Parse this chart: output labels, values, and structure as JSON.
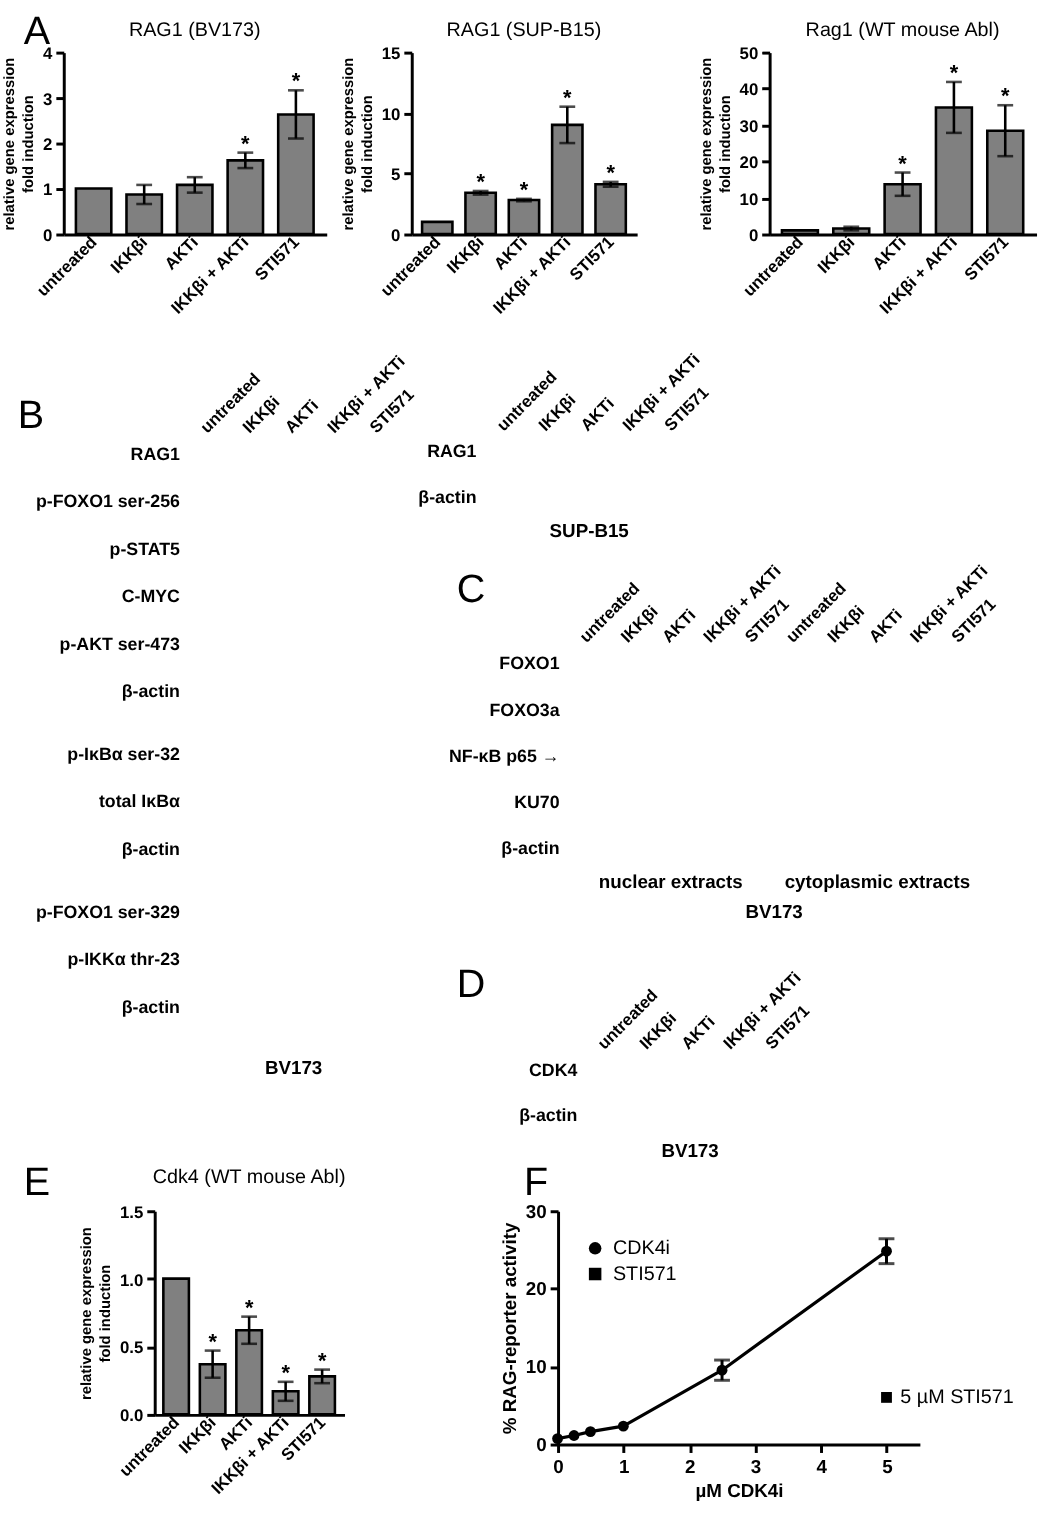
{
  "chart_data": [
    {
      "type": "bar",
      "title": "RAG1 (BV173)",
      "ylabel": "relative gene expression\nfold induction",
      "categories": [
        "untreated",
        "IKKβi",
        "AKTi",
        "IKKβi + AKTi",
        "STI571"
      ],
      "values": [
        1.0,
        0.87,
        1.08,
        1.62,
        2.63
      ],
      "errors": [
        null,
        0.21,
        0.17,
        0.17,
        0.53
      ],
      "color": "#808080",
      "ylim": [
        0,
        4
      ],
      "yticks": [
        0,
        1,
        2,
        3,
        4
      ],
      "annotations": [
        "A",
        {
          "text": "*",
          "x": "IKKβi + AKTi",
          "y": 1.79
        },
        {
          "text": "*",
          "x": "STI571",
          "y": 3.16
        }
      ]
    },
    {
      "type": "bar",
      "title": "RAG1 (SUP-B15)",
      "ylabel": "relative gene expression\nfold induction",
      "categories": [
        "untreated",
        "IKKβi",
        "AKTi",
        "IKKβi + AKTi",
        "STI571"
      ],
      "values": [
        1.0,
        3.4,
        2.8,
        9.0,
        4.1
      ],
      "errors": [
        null,
        0.15,
        0.1,
        1.5,
        0.2
      ],
      "color": "#808080",
      "ylim": [
        0,
        15
      ],
      "yticks": [
        0,
        5,
        10,
        15
      ],
      "annotations": [
        {
          "text": "*",
          "x": "IKKβi",
          "y": 3.55
        },
        {
          "text": "*",
          "x": "AKTi",
          "y": 2.9
        },
        {
          "text": "*",
          "x": "IKKβi + AKTi",
          "y": 10.5
        },
        {
          "text": "*",
          "x": "STI571",
          "y": 4.3
        }
      ]
    },
    {
      "type": "bar",
      "title": "Rag1 (WT mouse Abl)",
      "ylabel": "relative gene expression\nfold induction",
      "categories": [
        "untreated",
        "IKKβi",
        "AKTi",
        "IKKβi + AKTi",
        "STI571"
      ],
      "values": [
        1.0,
        1.5,
        13.7,
        34.8,
        28.4
      ],
      "errors": [
        null,
        0.5,
        3.2,
        7,
        7
      ],
      "color": "#808080",
      "ylim": [
        0,
        50
      ],
      "yticks": [
        0,
        10,
        20,
        30,
        40,
        50
      ],
      "annotations": [
        {
          "text": "*",
          "x": "AKTi",
          "y": 16.9
        },
        {
          "text": "*",
          "x": "IKKβi + AKTi",
          "y": 41.8
        },
        {
          "text": "*",
          "x": "STI571",
          "y": 35.4
        }
      ]
    },
    {
      "type": "other",
      "annotations": [
        "B"
      ],
      "categories": [
        "untreated",
        "IKKβi",
        "AKTi",
        "IKKβi + AKTi",
        "STI571"
      ],
      "y_categories": [
        "RAG1",
        "p-FOXO1 ser-256",
        "p-STAT5",
        "C-MYC",
        "p-AKT ser-473",
        "β-actin"
      ]
    },
    {
      "type": "other",
      "y_categories": [
        "p-IκBα ser-32",
        "total IκBα",
        "β-actin"
      ]
    },
    {
      "type": "other",
      "y_categories": [
        "p-FOXO1 ser-329",
        "p-IKKα thr-23",
        "β-actin"
      ],
      "xlabel": "BV173"
    },
    {
      "type": "other",
      "categories": [
        "untreated",
        "IKKβi",
        "AKTi",
        "IKKβi + AKTi",
        "STI571"
      ],
      "y_categories": [
        "RAG1",
        "β-actin"
      ],
      "xlabel": "SUP-B15"
    },
    {
      "type": "other",
      "annotations": [
        "C",
        "nuclear extracts",
        "cytoplasmic extracts"
      ],
      "categories": [
        "untreated",
        "IKKβi",
        "AKTi",
        "IKKβi + AKTi",
        "STI571",
        "untreated",
        "IKKβi",
        "AKTi",
        "IKKβi + AKTi",
        "STI571"
      ],
      "y_categories": [
        "FOXO1",
        "FOXO3a",
        "NF-κB p65 →",
        "KU70",
        "β-actin"
      ],
      "xlabel": "BV173"
    },
    {
      "type": "other",
      "annotations": [
        "D"
      ],
      "categories": [
        "untreated",
        "IKKβi",
        "AKTi",
        "IKKβi + AKTi",
        "STI571"
      ],
      "y_categories": [
        "CDK4",
        "β-actin"
      ],
      "xlabel": "BV173"
    },
    {
      "type": "bar",
      "title": "Cdk4 (WT mouse Abl)",
      "ylabel": "relative gene expression\nfold induction",
      "categories": [
        "untreated",
        "IKKβi",
        "AKTi",
        "IKKβi + AKTi",
        "STI571"
      ],
      "values": [
        1.0,
        0.37,
        0.62,
        0.17,
        0.28
      ],
      "errors": [
        null,
        0.1,
        0.1,
        0.07,
        0.05
      ],
      "color": "#808080",
      "ylim": [
        0,
        1.5
      ],
      "yticks": [
        {
          "value": 0,
          "label": "0.0"
        },
        {
          "value": 0.5,
          "label": "0.5"
        },
        {
          "value": 1,
          "label": "1.0"
        },
        {
          "value": 1.5,
          "label": "1.5"
        }
      ],
      "annotations": [
        "E",
        {
          "text": "*",
          "x": "IKKβi",
          "y": 0.47
        },
        {
          "text": "*",
          "x": "AKTi",
          "y": 0.72
        },
        {
          "text": "*",
          "x": "IKKβi + AKTi",
          "y": 0.24
        },
        {
          "text": "*",
          "x": "STI571",
          "y": 0.33
        }
      ]
    },
    {
      "type": "line",
      "ylabel": "% RAG-reporter activity",
      "xlabel": "µM CDK4i",
      "series": [
        {
          "name": "CDK4i",
          "color": "#000000",
          "x": [
            0,
            0.25,
            0.5,
            1,
            2.5,
            5
          ],
          "values": [
            0.7,
            1.1,
            1.6,
            2.3,
            9.5,
            24.8
          ],
          "errors": [
            null,
            null,
            null,
            null,
            1.3,
            1.6
          ],
          "marker": "circle"
        },
        {
          "name": "STI571",
          "color": "#000000",
          "x": [
            5
          ],
          "values": [
            6
          ],
          "marker": "square"
        }
      ],
      "xlim": [
        0,
        5.5
      ],
      "xticks": [
        0,
        1,
        2,
        3,
        4,
        5
      ],
      "ylim": [
        0,
        30
      ],
      "yticks": [
        0,
        10,
        20,
        30
      ],
      "legend": "top left",
      "annotations": [
        "F",
        {
          "text": "5 µM STI571",
          "x": 5,
          "y": 6
        }
      ]
    }
  ]
}
